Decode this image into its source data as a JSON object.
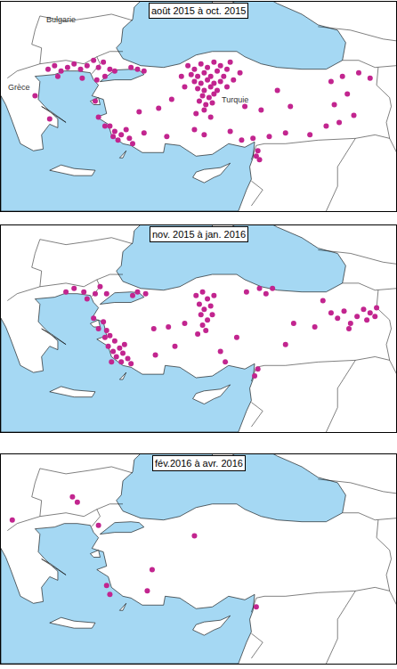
{
  "chart_data": [
    {
      "type": "scatter",
      "title": "août 2015 à oct. 2015",
      "color": "#c2258f",
      "marker": "circle",
      "xlim": [
        20.5,
        44.8
      ],
      "ylim": [
        33,
        44.8
      ],
      "tick_labels": false,
      "annotations": [
        {
          "text": "Bulgarie",
          "x": 24.2,
          "y": 43.8
        },
        {
          "text": "Grèce",
          "x": 21.6,
          "y": 40.0
        },
        {
          "text": "Turquie",
          "x": 34.9,
          "y": 39.3
        }
      ],
      "x": [
        23.4,
        23.8,
        24.2,
        24.6,
        25.0,
        25.4,
        25.8,
        26.2,
        26.5,
        26.8,
        27.2,
        26.9,
        26.4,
        27.5,
        28.5,
        28.9,
        29.3,
        25.5,
        24.0,
        22.6,
        23.5,
        26.3,
        26.5,
        26.9,
        27.2,
        27.5,
        27.9,
        28.2,
        27.7,
        28.4,
        27.4,
        28.6,
        32.0,
        32.4,
        32.8,
        33.2,
        33.6,
        34.0,
        34.4,
        32.2,
        32.6,
        33.0,
        33.4,
        33.8,
        34.2,
        32.4,
        32.8,
        33.2,
        33.6,
        34.0,
        32.6,
        33.0,
        33.4,
        33.8,
        32.9,
        33.3,
        33.6,
        32.7,
        33.1,
        33.5,
        34.4,
        34.8,
        35.2,
        31.6,
        31.8,
        34.6,
        33.0,
        32.5,
        33.4,
        31.0,
        30.2,
        29.0,
        29.3,
        30.7,
        32.4,
        33.0,
        34.6,
        35.3,
        36.0,
        36.3,
        36.2,
        36.4,
        37.0,
        38.0,
        39.5,
        40.5,
        41.3,
        42.2,
        41.0,
        40.8,
        41.5,
        42.5,
        43.2,
        41.8,
        38.3,
        36.5,
        35.5,
        37.5
      ],
      "y": [
        41.0,
        41.2,
        40.9,
        41.1,
        41.3,
        41.0,
        41.2,
        41.5,
        41.1,
        41.4,
        41.0,
        40.6,
        40.4,
        40.9,
        41.1,
        41.0,
        40.9,
        40.5,
        40.6,
        39.5,
        38.2,
        39.2,
        38.3,
        37.8,
        37.8,
        37.5,
        37.3,
        37.6,
        37.0,
        37.1,
        37.2,
        36.8,
        41.2,
        41.0,
        41.3,
        41.1,
        41.4,
        41.2,
        41.0,
        40.7,
        40.6,
        40.8,
        40.6,
        40.9,
        40.6,
        40.3,
        40.2,
        40.4,
        40.2,
        40.3,
        39.9,
        39.8,
        40.0,
        39.8,
        39.5,
        39.4,
        39.6,
        39.2,
        39.0,
        39.1,
        40.0,
        40.4,
        40.8,
        40.6,
        40.0,
        41.4,
        38.7,
        38.5,
        38.3,
        39.3,
        38.8,
        38.6,
        37.4,
        37.2,
        37.6,
        37.3,
        37.5,
        37.0,
        37.1,
        36.4,
        36.1,
        35.9,
        37.2,
        37.4,
        37.3,
        37.8,
        38.0,
        38.4,
        39.0,
        40.3,
        40.6,
        40.8,
        40.5,
        39.6,
        38.9,
        38.7,
        38.9,
        39.8
      ]
    },
    {
      "type": "scatter",
      "title": "nov. 2015 à jan. 2016",
      "color": "#c2258f",
      "marker": "circle",
      "xlim": [
        20.5,
        44.8
      ],
      "ylim": [
        33,
        44.8
      ],
      "tick_labels": false,
      "x": [
        24.5,
        25.0,
        25.6,
        26.3,
        26.6,
        27.0,
        28.9,
        28.6,
        29.4,
        25.8,
        26.8,
        27.0,
        26.9,
        27.2,
        27.5,
        27.1,
        27.4,
        27.8,
        27.6,
        28.0,
        28.3,
        27.9,
        28.5,
        27.3,
        28.1,
        26.5,
        26.2,
        32.5,
        32.9,
        33.2,
        32.7,
        33.0,
        33.4,
        32.8,
        33.2,
        32.9,
        33.5,
        33.1,
        32.6,
        33.6,
        31.8,
        30.8,
        29.9,
        31.2,
        30.0,
        36.4,
        36.8,
        37.2,
        35.6,
        40.8,
        41.2,
        41.6,
        42.0,
        42.4,
        42.8,
        43.2,
        43.0,
        43.6,
        43.5,
        41.9,
        40.3,
        39.8,
        38.5,
        38.0,
        36.3,
        36.1,
        34.0,
        35.0,
        34.3
      ],
      "y": [
        41.0,
        41.2,
        41.0,
        40.9,
        41.3,
        40.9,
        41.0,
        40.8,
        40.9,
        40.6,
        39.3,
        38.8,
        38.4,
        38.5,
        38.2,
        37.9,
        37.6,
        37.8,
        37.3,
        37.5,
        37.2,
        37.0,
        36.9,
        37.0,
        38.0,
        38.9,
        39.5,
        40.8,
        41.0,
        40.6,
        40.3,
        40.0,
        40.2,
        39.7,
        39.4,
        39.1,
        39.7,
        38.8,
        38.6,
        40.8,
        39.2,
        39.0,
        38.9,
        37.9,
        37.4,
        41.2,
        40.9,
        41.2,
        41.0,
        39.8,
        39.5,
        39.9,
        39.2,
        39.6,
        40.0,
        39.8,
        39.4,
        40.1,
        39.6,
        38.9,
        40.5,
        39.0,
        39.2,
        38.0,
        36.6,
        36.2,
        37.6,
        38.4,
        37.0
      ]
    },
    {
      "type": "scatter",
      "title": "fév.2016 à avr. 2016",
      "color": "#c2258f",
      "marker": "circle",
      "xlim": [
        20.5,
        44.8
      ],
      "ylim": [
        33,
        44.8
      ],
      "tick_labels": false,
      "x": [
        21.2,
        24.9,
        25.2,
        26.5,
        27.0,
        27.2,
        32.4,
        29.8,
        29.5,
        36.2
      ],
      "y": [
        41.1,
        42.4,
        42.1,
        40.8,
        37.4,
        36.9,
        40.2,
        38.3,
        37.1,
        36.2
      ]
    }
  ],
  "basemap": {
    "color": "#a5d8f3",
    "seas": [
      {
        "lon": [
          28.0,
          29.1,
          30.5,
          31.5,
          32.5,
          33.5,
          35.0,
          35.5,
          36.5,
          37.5,
          39.0,
          40.5,
          41.5,
          41.7,
          41.2,
          40.0,
          39.0,
          37.5,
          36.5,
          35.5,
          34.5,
          33.5,
          33.5,
          29.5,
          28.7,
          28.6,
          28.0,
          27.9,
          27.6,
          28.0
        ],
        "lat": [
          41.6,
          41.2,
          41.1,
          41.3,
          41.8,
          42.0,
          42.0,
          41.7,
          41.3,
          41.1,
          41.0,
          41.0,
          41.5,
          42.5,
          43.2,
          43.5,
          44.1,
          44.7,
          45.2,
          45.2,
          44.6,
          44.5,
          45.2,
          45.2,
          44.5,
          43.8,
          43.3,
          42.5,
          42.2,
          41.6
        ]
      },
      {
        "lon": [
          26.6,
          27.5,
          28.5,
          29.3,
          29.0,
          28.5,
          27.5,
          27.0,
          26.6
        ],
        "lat": [
          40.3,
          40.4,
          40.4,
          40.7,
          40.95,
          41.0,
          40.95,
          40.6,
          40.3
        ]
      },
      {
        "lon": [
          20.5,
          20.8,
          21.1,
          21.3,
          21.7,
          22.5,
          23.1,
          23.0,
          23.5,
          24.0,
          24.0,
          23.2,
          22.8,
          22.9,
          22.6,
          23.8,
          24.4,
          25.2,
          26.0,
          26.2,
          26.5,
          26.1,
          26.8,
          27.0,
          26.4,
          27.1,
          27.3,
          28.0,
          28.5,
          29.2,
          30.5,
          30.6,
          31.5,
          32.5,
          33.5,
          34.5,
          35.5,
          36.1,
          36.0,
          35.8,
          35.9,
          35.6,
          35.2,
          35.1,
          20.5,
          20.5
        ],
        "lat": [
          39.5,
          39.0,
          38.3,
          37.8,
          36.8,
          36.4,
          36.5,
          37.3,
          37.9,
          37.7,
          38.2,
          38.9,
          39.3,
          40.3,
          40.6,
          40.7,
          40.9,
          40.9,
          40.8,
          40.4,
          40.1,
          39.5,
          39.3,
          38.5,
          38.3,
          37.9,
          37.3,
          36.8,
          36.7,
          36.3,
          36.3,
          36.8,
          36.7,
          36.1,
          36.2,
          36.8,
          36.6,
          36.9,
          36.0,
          35.5,
          34.8,
          34.2,
          33.3,
          33.0,
          33.0,
          39.5
        ]
      }
    ],
    "islands": [
      {
        "lon": [
          23.5,
          24.2,
          25.0,
          26.3,
          26.1,
          25.0,
          24.0,
          23.5
        ],
        "lat": [
          35.3,
          35.6,
          35.4,
          35.3,
          35.0,
          35.0,
          35.2,
          35.3
        ]
      },
      {
        "lon": [
          32.3,
          32.5,
          33.0,
          34.0,
          34.6,
          34.0,
          33.6,
          33.0,
          32.3
        ],
        "lat": [
          34.9,
          35.2,
          35.35,
          35.45,
          35.7,
          35.05,
          34.9,
          34.6,
          34.9
        ]
      },
      {
        "lon": [
          26.0,
          26.5,
          26.6,
          26.2,
          26.0
        ],
        "lat": [
          39.2,
          39.4,
          39.0,
          39.0,
          39.2
        ]
      },
      {
        "lon": [
          23.0,
          24.0,
          24.5,
          23.6,
          23.0
        ],
        "lat": [
          38.9,
          38.3,
          38.0,
          38.6,
          38.9
        ]
      },
      {
        "lon": [
          27.8,
          28.2,
          28.0,
          27.8
        ],
        "lat": [
          36.0,
          36.4,
          36.0,
          36.0
        ]
      }
    ],
    "borders": [
      {
        "lon": [
          26.1,
          26.6,
          26.4
        ],
        "lat": [
          40.75,
          41.3,
          41.7
        ]
      },
      {
        "lon": [
          26.4,
          27.2,
          28.0
        ],
        "lat": [
          41.7,
          42.0,
          42.0
        ]
      },
      {
        "lon": [
          22.9,
          24.5,
          25.6,
          26.4
        ],
        "lat": [
          41.3,
          41.5,
          41.3,
          41.7
        ]
      },
      {
        "lon": [
          20.9,
          21.5,
          22.9
        ],
        "lat": [
          40.5,
          40.9,
          41.3
        ]
      },
      {
        "lon": [
          22.9,
          23.0,
          22.4
        ],
        "lat": [
          41.3,
          42.2,
          42.4
        ]
      },
      {
        "lon": [
          22.4,
          22.6,
          22.9
        ],
        "lat": [
          42.4,
          43.2,
          44.0
        ]
      },
      {
        "lon": [
          22.9,
          24.5,
          26.0,
          27.3,
          28.6
        ],
        "lat": [
          44.0,
          43.7,
          43.9,
          44.1,
          43.75
        ]
      },
      {
        "lon": [
          35.9,
          36.2,
          36.7,
          38.0,
          40.0,
          42.3
        ],
        "lat": [
          35.9,
          36.7,
          36.8,
          36.8,
          37.0,
          37.1
        ]
      },
      {
        "lon": [
          42.3,
          41.2,
          41.2,
          40.5
        ],
        "lat": [
          37.1,
          35.5,
          34.4,
          33.0
        ]
      },
      {
        "lon": [
          35.9,
          36.6,
          35.9
        ],
        "lat": [
          34.7,
          34.2,
          33.3
        ]
      },
      {
        "lon": [
          42.3,
          43.5,
          44.4
        ],
        "lat": [
          37.1,
          37.3,
          37.1
        ]
      },
      {
        "lon": [
          44.4,
          44.2,
          44.5,
          44.4
        ],
        "lat": [
          37.1,
          38.0,
          38.9,
          39.4
        ]
      },
      {
        "lon": [
          44.4,
          45.0
        ],
        "lat": [
          37.1,
          36.0
        ]
      },
      {
        "lon": [
          44.4,
          43.6,
          43.7
        ],
        "lat": [
          39.4,
          40.1,
          41.1
        ]
      },
      {
        "lon": [
          41.5,
          42.5,
          43.5,
          44.8
        ],
        "lat": [
          41.5,
          41.5,
          41.1,
          41.2
        ]
      },
      {
        "lon": [
          40.0,
          42.0,
          44.0,
          44.8
        ],
        "lat": [
          43.4,
          43.2,
          42.7,
          42.6
        ]
      }
    ]
  }
}
